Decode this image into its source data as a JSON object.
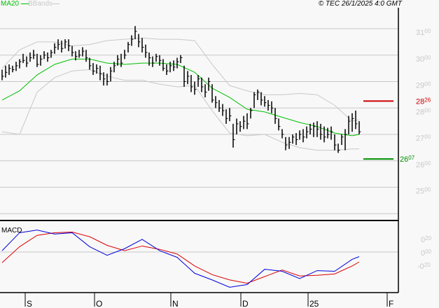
{
  "header": {
    "legend_ma": "MA20",
    "legend_bb": "BBands",
    "copyright": "© TEC 26/1/2025 4:0 GMT"
  },
  "colors": {
    "ma20": "#00c000",
    "bbands": "#c8c8c8",
    "bars": "#000000",
    "resistance": "#cc0000",
    "support": "#009000",
    "macd": "#0000dd",
    "signal": "#dd0000",
    "grid": "#c8c8c8"
  },
  "chart_data": [
    {
      "type": "ohlc",
      "ylim": [
        2400,
        3180
      ],
      "yticks": [
        {
          "value": 3100,
          "int": "31",
          "dec": "00"
        },
        {
          "value": 3000,
          "int": "30",
          "dec": "00"
        },
        {
          "value": 2900,
          "int": "29",
          "dec": "00"
        },
        {
          "value": 2800,
          "int": "28",
          "dec": "00"
        },
        {
          "value": 2700,
          "int": "27",
          "dec": "00"
        },
        {
          "value": 2600,
          "int": "26",
          "dec": "00"
        },
        {
          "value": 2500,
          "int": "25",
          "dec": "00"
        }
      ],
      "grid_values": [
        3100,
        3000,
        2900,
        2800,
        2700,
        2600,
        2500,
        2400
      ],
      "levels": [
        {
          "name": "resistance",
          "value": 2826,
          "int": "28",
          "dec": "26"
        },
        {
          "name": "support",
          "value": 2607,
          "int": "26",
          "dec": "07"
        }
      ],
      "bars_hlc": [
        [
          2945,
          2905,
          2920
        ],
        [
          2960,
          2915,
          2935
        ],
        [
          2965,
          2925,
          2950
        ],
        [
          2960,
          2935,
          2945
        ],
        [
          2975,
          2940,
          2960
        ],
        [
          2985,
          2950,
          2975
        ],
        [
          3005,
          2970,
          2980
        ],
        [
          2995,
          2955,
          2970
        ],
        [
          3010,
          2975,
          2990
        ],
        [
          3020,
          2985,
          3000
        ],
        [
          3005,
          2955,
          2965
        ],
        [
          3000,
          2960,
          2985
        ],
        [
          3015,
          2985,
          3000
        ],
        [
          3010,
          2975,
          2990
        ],
        [
          3020,
          2990,
          3010
        ],
        [
          3045,
          3005,
          3030
        ],
        [
          3060,
          3020,
          3040
        ],
        [
          3055,
          3010,
          3025
        ],
        [
          3060,
          3025,
          3050
        ],
        [
          3060,
          3015,
          3035
        ],
        [
          3035,
          2995,
          3010
        ],
        [
          3015,
          2980,
          2995
        ],
        [
          3020,
          2990,
          3000
        ],
        [
          3030,
          2995,
          3015
        ],
        [
          3020,
          2975,
          2990
        ],
        [
          2990,
          2945,
          2960
        ],
        [
          2970,
          2925,
          2940
        ],
        [
          2965,
          2930,
          2950
        ],
        [
          2960,
          2905,
          2930
        ],
        [
          2935,
          2885,
          2910
        ],
        [
          2930,
          2885,
          2900
        ],
        [
          2955,
          2900,
          2940
        ],
        [
          2975,
          2935,
          2960
        ],
        [
          3000,
          2960,
          2985
        ],
        [
          3005,
          2955,
          2970
        ],
        [
          3020,
          2985,
          3000
        ],
        [
          3050,
          3010,
          3040
        ],
        [
          3075,
          3035,
          3060
        ],
        [
          3110,
          3060,
          3090
        ],
        [
          3080,
          3030,
          3050
        ],
        [
          3065,
          3010,
          3030
        ],
        [
          3040,
          2990,
          3010
        ],
        [
          3010,
          2960,
          2990
        ],
        [
          2995,
          2955,
          2970
        ],
        [
          3005,
          2975,
          2995
        ],
        [
          3000,
          2960,
          2980
        ],
        [
          2985,
          2940,
          2950
        ],
        [
          2965,
          2925,
          2940
        ],
        [
          2975,
          2935,
          2960
        ],
        [
          2980,
          2940,
          2955
        ],
        [
          2990,
          2950,
          2975
        ],
        [
          3000,
          2970,
          2990
        ],
        [
          2960,
          2880,
          2900
        ],
        [
          2940,
          2890,
          2920
        ],
        [
          2925,
          2860,
          2880
        ],
        [
          2900,
          2850,
          2870
        ],
        [
          2925,
          2880,
          2910
        ],
        [
          2915,
          2860,
          2880
        ],
        [
          2890,
          2840,
          2860
        ],
        [
          2915,
          2865,
          2900
        ],
        [
          2890,
          2820,
          2830
        ],
        [
          2845,
          2800,
          2820
        ],
        [
          2830,
          2785,
          2800
        ],
        [
          2815,
          2770,
          2790
        ],
        [
          2795,
          2740,
          2760
        ],
        [
          2800,
          2750,
          2770
        ],
        [
          2740,
          2650,
          2680
        ],
        [
          2760,
          2700,
          2740
        ],
        [
          2750,
          2710,
          2730
        ],
        [
          2770,
          2720,
          2750
        ],
        [
          2780,
          2720,
          2740
        ],
        [
          2800,
          2760,
          2790
        ],
        [
          2860,
          2800,
          2850
        ],
        [
          2870,
          2830,
          2860
        ],
        [
          2860,
          2810,
          2830
        ],
        [
          2845,
          2805,
          2820
        ],
        [
          2830,
          2790,
          2810
        ],
        [
          2825,
          2780,
          2800
        ],
        [
          2800,
          2740,
          2760
        ],
        [
          2760,
          2715,
          2730
        ],
        [
          2720,
          2685,
          2700
        ],
        [
          2690,
          2640,
          2660
        ],
        [
          2690,
          2645,
          2670
        ],
        [
          2700,
          2665,
          2690
        ],
        [
          2705,
          2660,
          2680
        ],
        [
          2715,
          2680,
          2700
        ],
        [
          2720,
          2670,
          2690
        ],
        [
          2730,
          2685,
          2710
        ],
        [
          2740,
          2700,
          2720
        ],
        [
          2745,
          2690,
          2730
        ],
        [
          2750,
          2690,
          2720
        ],
        [
          2740,
          2680,
          2700
        ],
        [
          2730,
          2670,
          2690
        ],
        [
          2725,
          2685,
          2700
        ],
        [
          2730,
          2680,
          2710
        ],
        [
          2700,
          2640,
          2660
        ],
        [
          2665,
          2630,
          2640
        ],
        [
          2700,
          2660,
          2690
        ],
        [
          2720,
          2640,
          2700
        ],
        [
          2770,
          2700,
          2750
        ],
        [
          2780,
          2710,
          2760
        ],
        [
          2790,
          2720,
          2740
        ],
        [
          2750,
          2700,
          2710
        ]
      ],
      "line_sample_bar_index": [
        0,
        5,
        10,
        15,
        20,
        25,
        30,
        35,
        40,
        45,
        50,
        55,
        60,
        65,
        70,
        75,
        80,
        85,
        90,
        95,
        100,
        102
      ],
      "series": [
        {
          "name": "MA20",
          "values": [
            2830,
            2865,
            2925,
            2965,
            2985,
            2985,
            2970,
            2965,
            2970,
            2970,
            2965,
            2935,
            2875,
            2840,
            2795,
            2785,
            2765,
            2745,
            2730,
            2705,
            2695,
            2700
          ]
        },
        {
          "name": "BBands",
          "values": [
            2950,
            3020,
            3050,
            3050,
            3035,
            3040,
            3055,
            3060,
            3065,
            3060,
            3060,
            3055,
            2965,
            2885,
            2865,
            2850,
            2850,
            2855,
            2850,
            2810,
            2750,
            2755
          ]
        },
        {
          "name": "BBands",
          "values": [
            2710,
            2700,
            2860,
            2915,
            2940,
            2945,
            2920,
            2905,
            2905,
            2890,
            2880,
            2885,
            2790,
            2705,
            2695,
            2700,
            2670,
            2650,
            2640,
            2640,
            2645,
            2645
          ]
        }
      ],
      "xticks": [
        "S",
        "O",
        "N",
        "D",
        "25",
        "F"
      ]
    },
    {
      "type": "line",
      "title": "MACD",
      "yticks": [
        {
          "value": 0.2,
          "int": "0",
          "dec": "20"
        },
        {
          "value": 0,
          "int": "0",
          "dec": "00"
        },
        {
          "value": -0.2,
          "int": "-0",
          "dec": "20"
        }
      ],
      "series": [
        {
          "values": [
            0.02,
            0.29,
            0.33,
            0.27,
            0.29,
            0.08,
            -0.05,
            0.05,
            0.19,
            0.02,
            -0.08,
            -0.32,
            -0.42,
            -0.53,
            -0.49,
            -0.26,
            -0.29,
            -0.4,
            -0.28,
            -0.29,
            -0.11,
            -0.07
          ]
        },
        {
          "values": [
            -0.16,
            0.08,
            0.25,
            0.29,
            0.3,
            0.23,
            0.1,
            0.02,
            0.09,
            0.04,
            -0.03,
            -0.21,
            -0.34,
            -0.42,
            -0.47,
            -0.37,
            -0.27,
            -0.36,
            -0.35,
            -0.33,
            -0.21,
            -0.15
          ]
        }
      ]
    }
  ]
}
